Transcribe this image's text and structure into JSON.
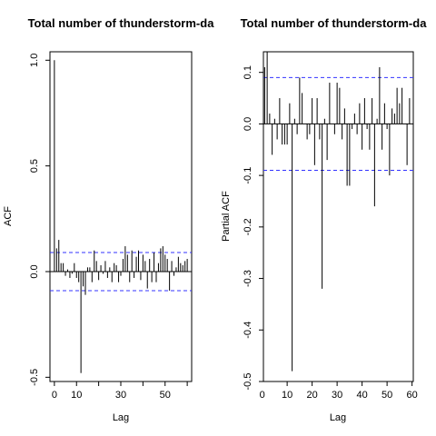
{
  "chart_data": [
    {
      "type": "bar",
      "title": "Total number of thunderstorm-da",
      "xlabel": "Lag",
      "ylabel": "ACF",
      "xlim": [
        -2,
        62
      ],
      "ylim": [
        -0.52,
        1.04
      ],
      "xticks": [
        0,
        10,
        20,
        30,
        40,
        50,
        60
      ],
      "xtick_labels": [
        "0",
        "10",
        "30",
        "50"
      ],
      "yticks": [
        -0.5,
        0.0,
        0.5,
        1.0
      ],
      "ytick_labels": [
        "-0.5",
        "0.0",
        "0.5",
        "1.0"
      ],
      "confidence_limits": [
        0.09,
        -0.09
      ],
      "colors": {
        "bars": "#000000",
        "confidence": "#3333ff",
        "zero_line": "#000000"
      },
      "lags": [
        0,
        1,
        2,
        3,
        4,
        5,
        6,
        7,
        8,
        9,
        10,
        11,
        12,
        13,
        14,
        15,
        16,
        17,
        18,
        19,
        20,
        21,
        22,
        23,
        24,
        25,
        26,
        27,
        28,
        29,
        30,
        31,
        32,
        33,
        34,
        35,
        36,
        37,
        38,
        39,
        40,
        41,
        42,
        43,
        44,
        45,
        46,
        47,
        48,
        49,
        50,
        51,
        52,
        53,
        54,
        55,
        56,
        57,
        58,
        59,
        60
      ],
      "values": [
        1.0,
        0.11,
        0.15,
        0.04,
        0.04,
        -0.02,
        0.01,
        -0.03,
        -0.01,
        0.04,
        -0.03,
        -0.05,
        -0.48,
        -0.07,
        -0.11,
        0.02,
        0.02,
        -0.05,
        0.1,
        0.05,
        -0.04,
        0.03,
        -0.01,
        0.05,
        -0.03,
        0.02,
        -0.05,
        0.04,
        0.03,
        -0.05,
        -0.02,
        0.06,
        0.12,
        0.08,
        -0.05,
        0.1,
        -0.03,
        0.07,
        0.1,
        -0.04,
        0.08,
        0.05,
        -0.08,
        0.06,
        -0.05,
        0.09,
        -0.05,
        0.04,
        0.11,
        0.12,
        0.08,
        0.06,
        -0.09,
        0.05,
        -0.02,
        0.02,
        0.07,
        0.04,
        0.03,
        0.05,
        0.06
      ]
    },
    {
      "type": "bar",
      "title": "Total number of thunderstorm-da",
      "xlabel": "Lag",
      "ylabel": "Partial ACF",
      "xlim": [
        0.5,
        60.5
      ],
      "ylim": [
        -0.5,
        0.14
      ],
      "xticks": [
        0,
        10,
        20,
        30,
        40,
        50,
        60
      ],
      "xtick_labels": [
        "0",
        "10",
        "20",
        "30",
        "40",
        "50",
        "60"
      ],
      "yticks": [
        -0.5,
        -0.4,
        -0.3,
        -0.2,
        -0.1,
        0.0,
        0.1
      ],
      "ytick_labels": [
        "-0.5",
        "-0.4",
        "-0.3",
        "-0.2",
        "-0.1",
        "0.0",
        "0.1"
      ],
      "confidence_limits": [
        0.09,
        -0.09
      ],
      "colors": {
        "bars": "#000000",
        "confidence": "#3333ff",
        "zero_line": "#000000"
      },
      "lags": [
        1,
        2,
        3,
        4,
        5,
        6,
        7,
        8,
        9,
        10,
        11,
        12,
        13,
        14,
        15,
        16,
        17,
        18,
        19,
        20,
        21,
        22,
        23,
        24,
        25,
        26,
        27,
        28,
        29,
        30,
        31,
        32,
        33,
        34,
        35,
        36,
        37,
        38,
        39,
        40,
        41,
        42,
        43,
        44,
        45,
        46,
        47,
        48,
        49,
        50,
        51,
        52,
        53,
        54,
        55,
        56,
        57,
        58,
        59,
        60
      ],
      "values": [
        0.11,
        0.14,
        0.02,
        -0.06,
        0.01,
        -0.03,
        0.05,
        -0.04,
        -0.04,
        -0.04,
        0.04,
        -0.48,
        0.01,
        -0.02,
        0.09,
        0.06,
        0.0,
        -0.03,
        -0.02,
        0.05,
        -0.08,
        0.05,
        -0.03,
        -0.32,
        0.01,
        -0.07,
        0.08,
        0.0,
        -0.02,
        0.08,
        0.07,
        -0.03,
        0.03,
        -0.12,
        -0.12,
        -0.01,
        0.02,
        -0.02,
        0.04,
        -0.05,
        0.05,
        -0.01,
        -0.05,
        0.05,
        -0.16,
        0.01,
        0.11,
        -0.05,
        0.04,
        -0.01,
        -0.1,
        0.03,
        0.02,
        0.07,
        0.04,
        0.07,
        0.0,
        -0.08,
        0.05,
        0.0
      ]
    }
  ]
}
